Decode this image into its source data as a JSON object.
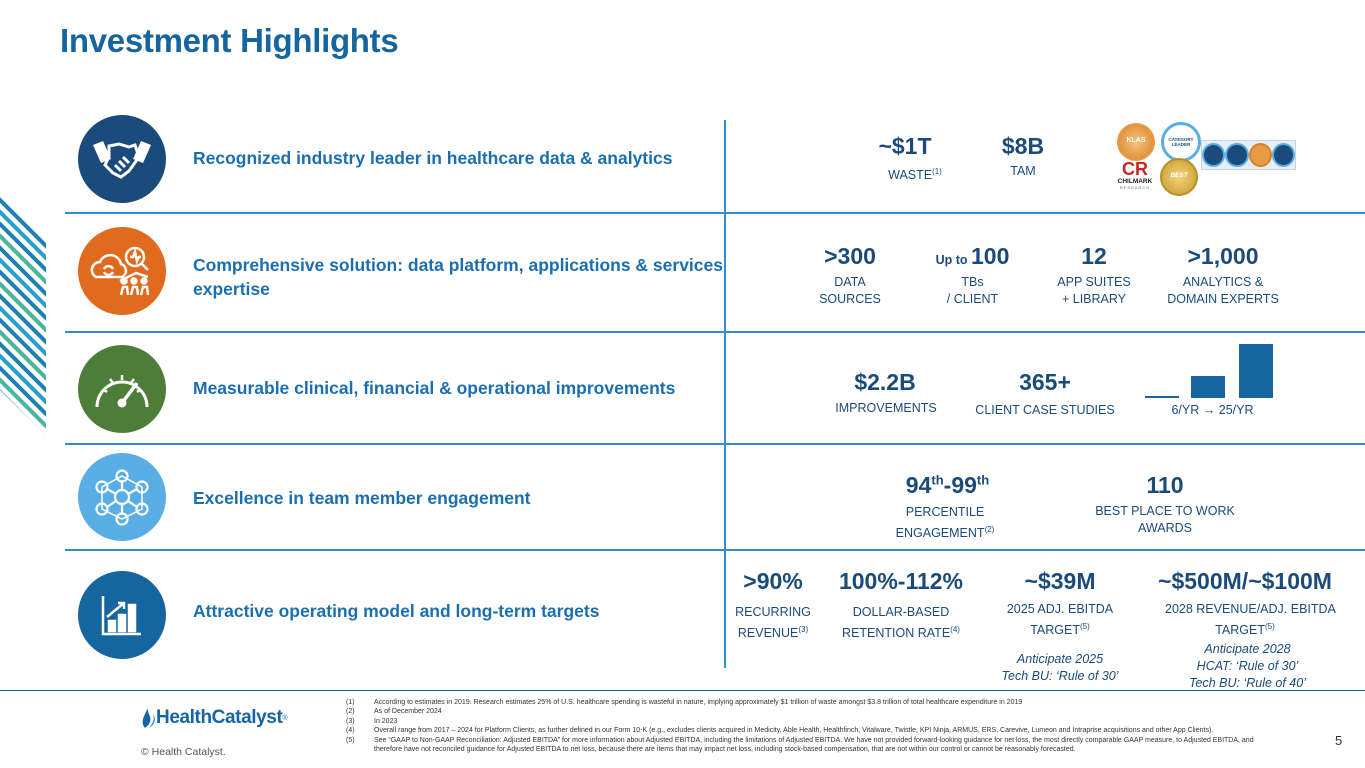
{
  "page": {
    "title": "Investment Highlights",
    "page_number": "5",
    "copyright": "© Health Catalyst."
  },
  "logo": {
    "brand": "HealthCatalyst",
    "mark": "®"
  },
  "rows": [
    {
      "label": "Recognized industry leader in healthcare data & analytics",
      "icon": "handshake-icon",
      "stats": [
        {
          "value": "~$1T",
          "label": "WASTE",
          "sup": "(1)"
        },
        {
          "value": "$8B",
          "label": "TAM"
        }
      ],
      "badges": {
        "klas": "KLAS",
        "category_leader": "CATEGORY LEADER",
        "chilmark": "CHILMARK",
        "chilmark_sub": "RESEARCH",
        "best": "BEST"
      }
    },
    {
      "label": "Comprehensive solution: data platform, applications & services expertise",
      "icon": "cloud-analytics-icon",
      "stats": [
        {
          "value": ">300",
          "label1": "DATA",
          "label2": "SOURCES"
        },
        {
          "prefix": "Up to ",
          "value": "100",
          "label1": "TBs",
          "label2": "/ CLIENT"
        },
        {
          "value": "12",
          "label1": "APP SUITES",
          "label2": "+ LIBRARY"
        },
        {
          "value": ">1,000",
          "label1": "ANALYTICS &",
          "label2": "DOMAIN EXPERTS"
        }
      ]
    },
    {
      "label": "Measurable clinical, financial & operational improvements",
      "icon": "speedometer-icon",
      "stats": [
        {
          "value": "$2.2B",
          "label": "IMPROVEMENTS"
        },
        {
          "value": "365+",
          "label": "CLIENT CASE STUDIES"
        }
      ],
      "bars": {
        "caption_left": "6/YR",
        "arrow": "→",
        "caption_right": "25/YR",
        "values": [
          1,
          10,
          25
        ],
        "max": 25
      }
    },
    {
      "label": "Excellence in team member engagement",
      "icon": "network-people-icon",
      "stats": [
        {
          "value_a": "94",
          "sup_a": "th",
          "dash": "-",
          "value_b": "99",
          "sup_b": "th",
          "label1": "PERCENTILE",
          "label2": "ENGAGEMENT",
          "sup": "(2)"
        },
        {
          "value": "110",
          "label1": "BEST PLACE TO WORK",
          "label2": "AWARDS"
        }
      ]
    },
    {
      "label": "Attractive operating model and long-term targets",
      "icon": "bar-chart-icon",
      "stats": [
        {
          "value": ">90%",
          "label1": "RECURRING",
          "label2": "REVENUE",
          "sup": "(3)"
        },
        {
          "value": "100%-112%",
          "label1": "DOLLAR-BASED",
          "label2": "RETENTION RATE",
          "sup": "(4)"
        },
        {
          "value": "~$39M",
          "label1": "2025 ADJ. EBITDA",
          "label2": "TARGET",
          "sup": "(5)",
          "note1": "Anticipate 2025",
          "note2": "Tech BU: ‘Rule of 30’"
        },
        {
          "value": "~$500M/~$100M",
          "label1": "2028 REVENUE/ADJ. EBITDA",
          "label2": "TARGET",
          "sup": "(5)",
          "note1": "Anticipate 2028",
          "note2": "HCAT: ‘Rule of 30’",
          "note3": "Tech BU: ‘Rule of 40’"
        }
      ]
    }
  ],
  "footnotes": [
    {
      "n": "(1)",
      "text": "According to estimates in 2019. Research estimates 25% of U.S. healthcare spending is wasteful in nature, implying approximately $1 trillion of waste amongst $3.8 trillion of total healthcare expenditure in 2019"
    },
    {
      "n": "(2)",
      "text": "As of December 2024"
    },
    {
      "n": "(3)",
      "text": "In 2023"
    },
    {
      "n": "(4)",
      "text": "Overall range from 2017 – 2024 for Platform Clients, as further defined in our Form 10-K (e.g., excludes clients acquired in Medicity, Able Health, Healthfinch, Vitalware, Twistle, KPI Ninja, ARMUS, ERS, Carevive, Lumeon and Intraprise acquisitions and other App Clients)."
    },
    {
      "n": "(5)",
      "text": "See “GAAP to Non-GAAP Reconciliation: Adjusted EBITDA” for more information about Adjusted EBITDA, including the limitations of Adjusted EBITDA. We have not provided forward-looking guidance for net loss, the most directly comparable GAAP measure, to Adjusted EBITDA, and therefore have not reconciled guidance for Adjusted EBITDA to net loss, because there are items that may impact net loss, including stock-based compensation, that are not within our control or cannot be reasonably forecasted."
    }
  ],
  "colors": {
    "title": "#1565a0",
    "navy": "#1a4b7a",
    "orange": "#e06a1e",
    "green": "#4e7d3a",
    "lightblue": "#5aaee6",
    "blue": "#1565a0"
  }
}
